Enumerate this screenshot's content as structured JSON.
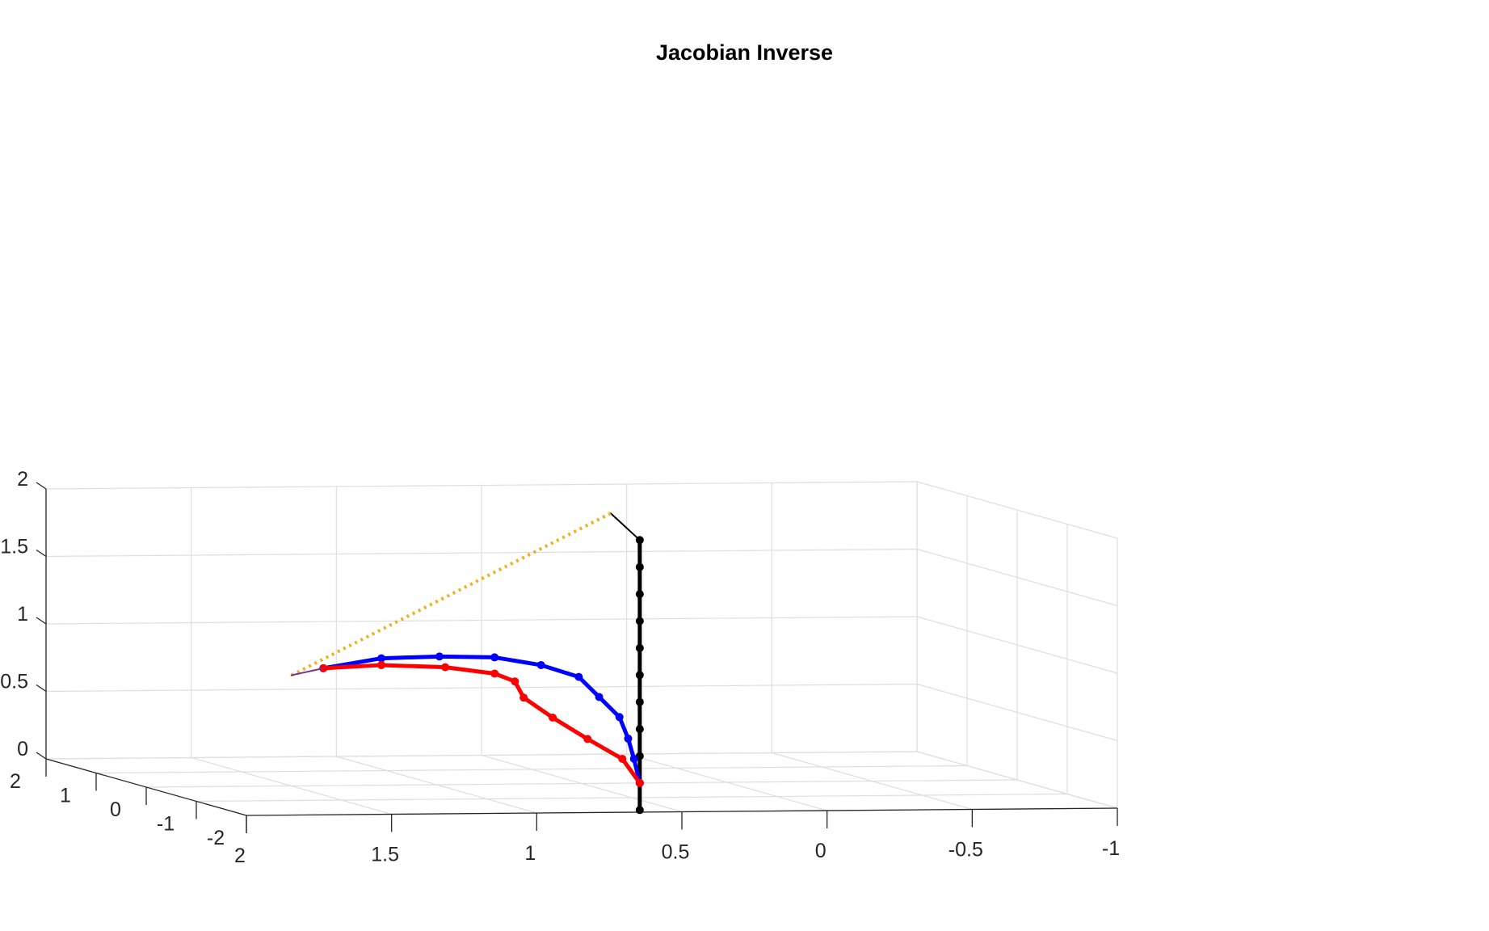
{
  "chart_data": {
    "type": "line",
    "title": "Jacobian Inverse",
    "xlabel": "",
    "ylabel": "",
    "zlabel": "",
    "grid": true,
    "xlim": [
      -1,
      2
    ],
    "ylim": [
      -2,
      2
    ],
    "zlim": [
      0,
      2
    ],
    "x_ticks": [
      "2",
      "1.5",
      "1",
      "0.5",
      "0",
      "-0.5",
      "-1"
    ],
    "y_ticks": [
      "-2",
      "-1",
      "0",
      "1",
      "2"
    ],
    "z_ticks": [
      "0",
      "0.5",
      "1",
      "1.5",
      "2"
    ],
    "series": [
      {
        "color": "#000000",
        "style": "solid-thick-markers",
        "x": [
          0.3,
          0.3,
          0.3,
          0.3,
          0.3,
          0.3,
          0.3,
          0.3,
          0.3,
          0.3,
          0.3
        ],
        "y": [
          0,
          0,
          0,
          0,
          0,
          0,
          0,
          0,
          0,
          0,
          0
        ],
        "z": [
          -0.2,
          0.0,
          0.2,
          0.4,
          0.6,
          0.8,
          1.0,
          1.2,
          1.4,
          1.6,
          1.8
        ]
      },
      {
        "color": "#000000",
        "style": "solid-thin",
        "x": [
          0.3,
          0.4
        ],
        "y": [
          0,
          0
        ],
        "z": [
          1.8,
          2.0
        ]
      },
      {
        "color": "#EDB120",
        "style": "dotted",
        "x": [
          0.4,
          1.5
        ],
        "y": [
          0,
          0
        ],
        "z": [
          2.0,
          0.82
        ]
      },
      {
        "color": "#0000FF",
        "style": "solid-thick-markers",
        "x": [
          0.3,
          0.32,
          0.34,
          0.37,
          0.44,
          0.51,
          0.64,
          0.8,
          0.99,
          1.19,
          1.39
        ],
        "y": [
          0,
          0,
          0,
          0,
          0,
          0,
          0,
          0,
          0,
          0,
          0
        ],
        "z": [
          0.0,
          0.18,
          0.33,
          0.49,
          0.64,
          0.79,
          0.88,
          0.94,
          0.95,
          0.94,
          0.87
        ]
      },
      {
        "color": "#FF0000",
        "style": "solid-thick-markers",
        "x": [
          0.3,
          0.36,
          0.48,
          0.6,
          0.7,
          0.73,
          0.8,
          0.97,
          1.19,
          1.39
        ],
        "y": [
          0,
          0,
          0,
          0,
          0,
          0,
          0,
          0,
          0,
          0
        ],
        "z": [
          0.0,
          0.18,
          0.33,
          0.49,
          0.64,
          0.76,
          0.82,
          0.87,
          0.89,
          0.87
        ]
      },
      {
        "color": "#7E2F8E",
        "style": "solid-thin",
        "x": [
          1.39,
          1.5
        ],
        "y": [
          0,
          0
        ],
        "z": [
          0.87,
          0.82
        ]
      }
    ]
  }
}
